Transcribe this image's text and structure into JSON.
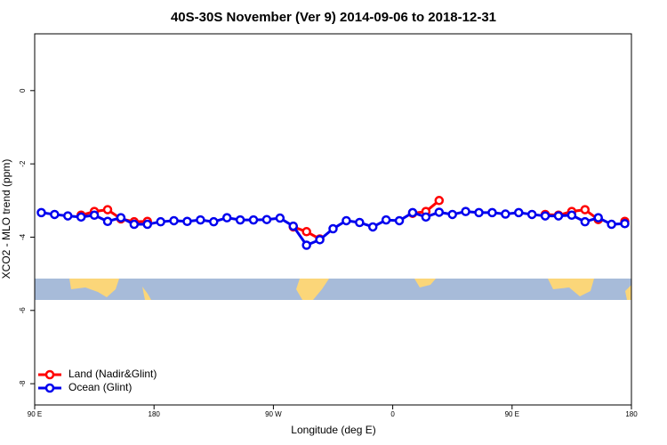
{
  "chart_data": {
    "type": "line",
    "title": "40S-30S November (Ver 9)   2014-09-06 to 2018-12-31",
    "x_label": "Longitude (deg E)",
    "y_label": "XCO2 - MLO trend (ppm)",
    "x": [
      95,
      105,
      115,
      125,
      135,
      145,
      155,
      165,
      175,
      185,
      195,
      205,
      215,
      225,
      235,
      245,
      255,
      265,
      275,
      285,
      295,
      305,
      315,
      325,
      335,
      345,
      355,
      365,
      375,
      385,
      395,
      405,
      415,
      425,
      435,
      445,
      455,
      465,
      475,
      485,
      495,
      505,
      515,
      525,
      535
    ],
    "series": [
      {
        "name": "Land (Nadir&Glint)",
        "color": "#ff0000",
        "values": [
          null,
          null,
          null,
          -3.4,
          -3.3,
          -3.25,
          -3.5,
          -3.58,
          -3.57,
          null,
          null,
          null,
          null,
          null,
          null,
          null,
          null,
          null,
          null,
          -3.72,
          -3.85,
          -4.05,
          null,
          null,
          null,
          null,
          null,
          null,
          -3.35,
          -3.3,
          -3.0,
          null,
          null,
          null,
          null,
          null,
          null,
          null,
          -3.38,
          -3.4,
          -3.3,
          -3.25,
          -3.52,
          null,
          -3.57
        ]
      },
      {
        "name": "Ocean (Glint)",
        "color": "#0000ee",
        "values": [
          -3.33,
          -3.38,
          -3.42,
          -3.45,
          -3.4,
          -3.57,
          -3.47,
          -3.65,
          -3.65,
          -3.58,
          -3.55,
          -3.57,
          -3.53,
          -3.58,
          -3.47,
          -3.53,
          -3.53,
          -3.52,
          -3.48,
          -3.7,
          -4.22,
          -4.07,
          -3.77,
          -3.55,
          -3.6,
          -3.72,
          -3.53,
          -3.55,
          -3.33,
          -3.45,
          -3.32,
          -3.38,
          -3.3,
          -3.33,
          -3.33,
          -3.37,
          -3.33,
          -3.38,
          -3.42,
          -3.42,
          -3.4,
          -3.58,
          -3.47,
          -3.65,
          -3.63
        ]
      }
    ],
    "xlim": [
      90,
      540
    ],
    "xticks": [
      {
        "value": 90,
        "label": "90 E"
      },
      180,
      {
        "value": 270,
        "label": "90 W"
      },
      {
        "value": 360,
        "label": "0"
      },
      {
        "value": 450,
        "label": "90 E"
      },
      {
        "value": 540,
        "label": "180"
      }
    ],
    "ylim": [
      -8.58,
      1.55
    ],
    "yticks": [
      0,
      -2,
      -4,
      -6,
      -8
    ],
    "legend": "bottom-left"
  }
}
